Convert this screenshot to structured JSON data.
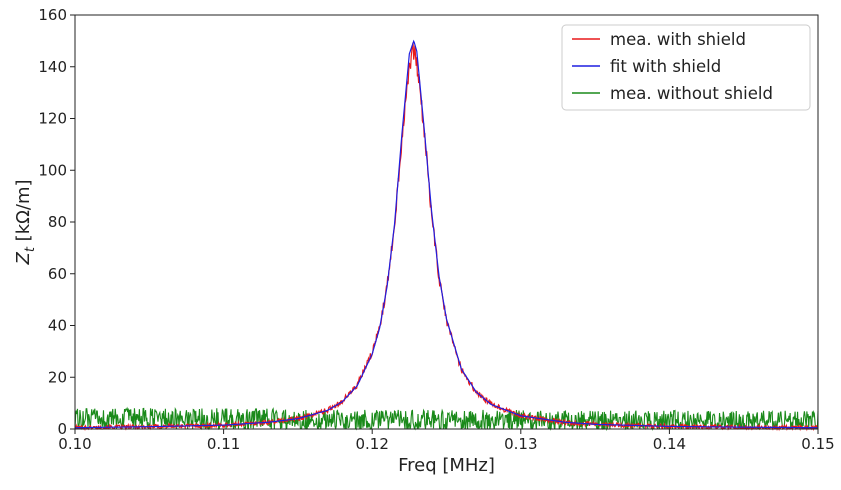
{
  "chart_data": {
    "type": "line",
    "title": "",
    "xlabel": "Freq [MHz]",
    "ylabel_prefix": "Z",
    "ylabel_sub": "t",
    "ylabel_suffix": " [kΩ/m]",
    "xlim": [
      0.1,
      0.15
    ],
    "ylim": [
      0,
      160
    ],
    "x_ticks": [
      0.1,
      0.11,
      0.12,
      0.13,
      0.14,
      0.15
    ],
    "x_tick_labels": [
      "0.10",
      "0.11",
      "0.12",
      "0.13",
      "0.14",
      "0.15"
    ],
    "y_ticks": [
      0,
      20,
      40,
      60,
      80,
      100,
      120,
      140,
      160
    ],
    "y_tick_labels": [
      "0",
      "20",
      "40",
      "60",
      "80",
      "100",
      "120",
      "140",
      "160"
    ],
    "grid": false,
    "legend_position": "top-right",
    "series": [
      {
        "name": "mea. with shield",
        "color": "#e8191a",
        "noisy": true,
        "x": [
          0.1,
          0.105,
          0.11,
          0.113,
          0.115,
          0.117,
          0.118,
          0.119,
          0.12,
          0.1205,
          0.121,
          0.1215,
          0.122,
          0.1225,
          0.1228,
          0.123,
          0.1235,
          0.124,
          0.1245,
          0.125,
          0.126,
          0.127,
          0.128,
          0.13,
          0.133,
          0.135,
          0.14,
          0.145,
          0.15
        ],
        "y": [
          0.5,
          0.9,
          1.5,
          2.6,
          4.0,
          7.3,
          10.8,
          17.0,
          29.5,
          39.5,
          55.0,
          79.0,
          112.0,
          142.0,
          146.0,
          142.0,
          115.0,
          83.0,
          58.0,
          42.0,
          23.0,
          14.2,
          9.5,
          5.1,
          2.6,
          1.8,
          1.0,
          0.7,
          0.5
        ]
      },
      {
        "name": "fit with shield",
        "color": "#1f1fe0",
        "noisy": false,
        "x": [
          0.1,
          0.105,
          0.11,
          0.113,
          0.115,
          0.117,
          0.118,
          0.119,
          0.12,
          0.1205,
          0.121,
          0.1215,
          0.122,
          0.1225,
          0.1228,
          0.123,
          0.1235,
          0.124,
          0.1245,
          0.125,
          0.126,
          0.127,
          0.128,
          0.13,
          0.133,
          0.135,
          0.14,
          0.145,
          0.15
        ],
        "y": [
          0.5,
          0.9,
          1.5,
          2.6,
          4.0,
          7.2,
          10.6,
          16.8,
          29.0,
          39.0,
          55.0,
          79.0,
          114.0,
          145.0,
          150.0,
          146.0,
          116.0,
          84.0,
          59.0,
          42.5,
          23.2,
          14.3,
          9.5,
          5.1,
          2.6,
          1.8,
          1.0,
          0.7,
          0.5
        ]
      },
      {
        "name": "mea. without shield",
        "color": "#1a8a1a",
        "noisy": true,
        "x": [
          0.1,
          0.11,
          0.12,
          0.13,
          0.14,
          0.15
        ],
        "y": [
          2.5,
          2.5,
          2.0,
          1.8,
          1.6,
          1.5
        ]
      }
    ]
  }
}
